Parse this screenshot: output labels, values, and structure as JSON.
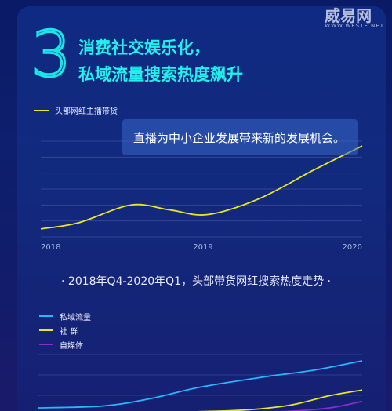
{
  "watermark": {
    "brand": "威易网",
    "url": "WWW.WESTE.NET"
  },
  "section_number": "3",
  "headline": {
    "line1": "消费社交娱乐化，",
    "line2": "私域流量搜索热度飙升"
  },
  "chart_top_callout": "直播为中小企业发展带来新的发展机会。",
  "chart_bottom_title": "·  2018年Q4-2020年Q1，头部带货网红搜索热度走势  ·",
  "colors": {
    "cyan": "#21f0ec",
    "yellow": "#e7e629",
    "blue_line": "#27b7ff",
    "purple_line": "#8a2bd8"
  },
  "chart_data": [
    {
      "type": "line",
      "x": [
        "2018",
        "2018.5",
        "2019",
        "2019.5",
        "2020"
      ],
      "x_ticks": [
        "2018",
        "2019",
        "2020"
      ],
      "series": [
        {
          "name": "头部网红主播带货",
          "color": "#e7e629",
          "points": [
            [
              0,
              5
            ],
            [
              0.12,
              9
            ],
            [
              0.28,
              20
            ],
            [
              0.4,
              17
            ],
            [
              0.52,
              14
            ],
            [
              0.68,
              24
            ],
            [
              0.85,
              42
            ],
            [
              1,
              57
            ]
          ]
        }
      ],
      "ylim": [
        0,
        60
      ],
      "grid": true,
      "legend_position": "top-left"
    },
    {
      "type": "line",
      "series": [
        {
          "name": "私域流量",
          "color": "#27b7ff",
          "points": [
            [
              0,
              5
            ],
            [
              0.2,
              7
            ],
            [
              0.35,
              15
            ],
            [
              0.5,
              27
            ],
            [
              0.7,
              38
            ],
            [
              0.85,
              45
            ],
            [
              1,
              55
            ]
          ]
        },
        {
          "name": "社 群",
          "color": "#e7e629",
          "points": [
            [
              0,
              0
            ],
            [
              0.3,
              0
            ],
            [
              0.5,
              1
            ],
            [
              0.65,
              3
            ],
            [
              0.78,
              8
            ],
            [
              0.9,
              18
            ],
            [
              1,
              24
            ]
          ]
        },
        {
          "name": "自媒体",
          "color": "#8a2bd8",
          "points": [
            [
              0.55,
              0
            ],
            [
              0.75,
              1
            ],
            [
              0.9,
              5
            ],
            [
              1,
              12
            ]
          ]
        }
      ],
      "ylim": [
        0,
        70
      ],
      "grid": true,
      "legend_position": "top-left"
    }
  ]
}
